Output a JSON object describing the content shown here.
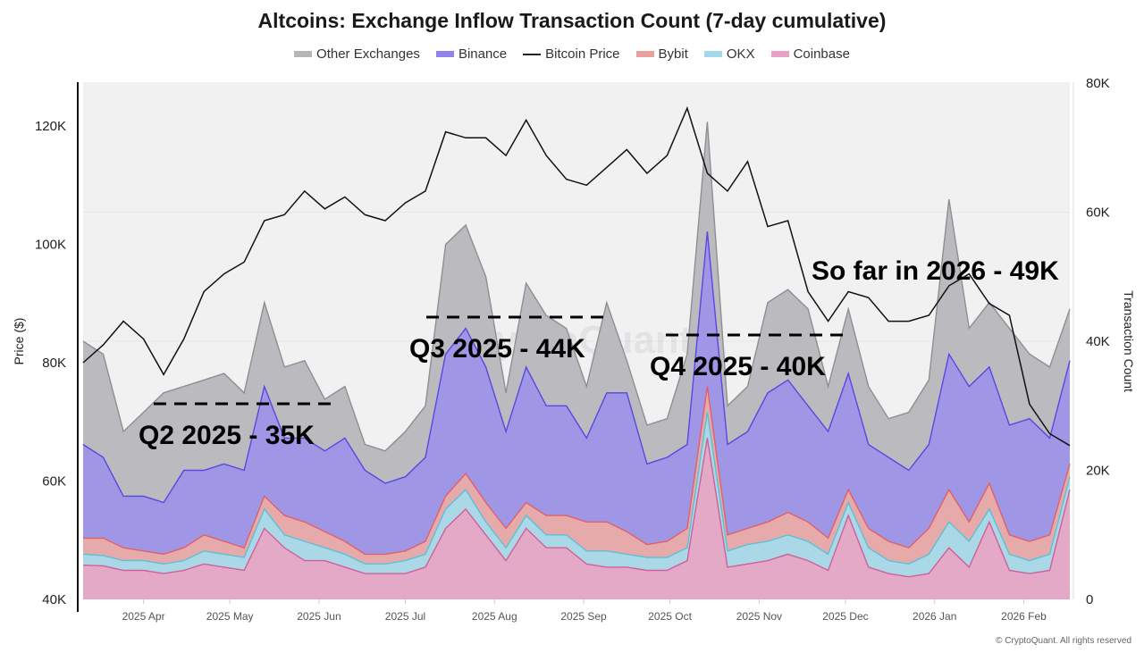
{
  "chart_data": {
    "type": "area",
    "stacked": true,
    "title": "Altcoins: Exchange Inflow Transaction Count (7-day cumulative)",
    "ylabel_left": "Price ($)",
    "ylabel_right": "Transaction Count",
    "ylim_left": [
      40000,
      127000
    ],
    "ylim_right": [
      0,
      80000
    ],
    "yticks_left": [
      "40K",
      "60K",
      "80K",
      "100K",
      "120K"
    ],
    "yticks_right": [
      "0",
      "20K",
      "40K",
      "60K",
      "80K"
    ],
    "xlim": [
      "2025-03-11",
      "2026-02-17"
    ],
    "xticks": [
      {
        "date": "2025-04-01",
        "label": "2025 Apr"
      },
      {
        "date": "2025-05-01",
        "label": "2025 May"
      },
      {
        "date": "2025-06-01",
        "label": "2025 Jun"
      },
      {
        "date": "2025-07-01",
        "label": "2025 Jul"
      },
      {
        "date": "2025-08-01",
        "label": "2025 Aug"
      },
      {
        "date": "2025-09-01",
        "label": "2025 Sep"
      },
      {
        "date": "2025-10-01",
        "label": "2025 Oct"
      },
      {
        "date": "2025-11-01",
        "label": "2025 Nov"
      },
      {
        "date": "2025-12-01",
        "label": "2025 Dec"
      },
      {
        "date": "2026-01-01",
        "label": "2026 Jan"
      },
      {
        "date": "2026-02-01",
        "label": "2026 Feb"
      }
    ],
    "legend_position": "top",
    "grid": true,
    "x": [
      "2025-03-11",
      "2025-03-18",
      "2025-03-25",
      "2025-04-01",
      "2025-04-08",
      "2025-04-15",
      "2025-04-22",
      "2025-04-29",
      "2025-05-06",
      "2025-05-13",
      "2025-05-20",
      "2025-05-27",
      "2025-06-03",
      "2025-06-10",
      "2025-06-17",
      "2025-06-24",
      "2025-07-01",
      "2025-07-08",
      "2025-07-15",
      "2025-07-22",
      "2025-07-29",
      "2025-08-05",
      "2025-08-12",
      "2025-08-19",
      "2025-08-26",
      "2025-09-02",
      "2025-09-09",
      "2025-09-16",
      "2025-09-23",
      "2025-09-30",
      "2025-10-07",
      "2025-10-14",
      "2025-10-21",
      "2025-10-28",
      "2025-11-04",
      "2025-11-11",
      "2025-11-18",
      "2025-11-25",
      "2025-12-02",
      "2025-12-09",
      "2025-12-16",
      "2025-12-23",
      "2025-12-30",
      "2026-01-06",
      "2026-01-13",
      "2026-01-20",
      "2026-01-27",
      "2026-02-03",
      "2026-02-10",
      "2026-02-17"
    ],
    "series": [
      {
        "name": "Coinbase",
        "axis": "right",
        "color": "#e3a9c7",
        "line": "#d0609a",
        "values": [
          5300,
          5200,
          4500,
          4500,
          4000,
          4500,
          5500,
          5000,
          4500,
          11000,
          8000,
          6000,
          6000,
          5000,
          4000,
          4000,
          4000,
          5000,
          11000,
          14000,
          10000,
          6000,
          11000,
          8000,
          8000,
          5500,
          5000,
          5000,
          4500,
          4500,
          6000,
          25000,
          5000,
          5500,
          6000,
          7000,
          6000,
          4500,
          13000,
          5000,
          4000,
          3500,
          4000,
          8000,
          5000,
          12000,
          4500,
          4000,
          4500,
          17000
        ]
      },
      {
        "name": "OKX",
        "axis": "right",
        "color": "#abd8e6",
        "line": "#5cc0d6",
        "values": [
          1700,
          1600,
          1500,
          1500,
          1500,
          1500,
          2000,
          2000,
          2000,
          3000,
          2000,
          3000,
          2000,
          2000,
          1500,
          1500,
          2000,
          2000,
          3000,
          3000,
          2000,
          2000,
          2000,
          2000,
          2000,
          2000,
          2500,
          2000,
          2000,
          2000,
          2000,
          4000,
          2500,
          3000,
          3000,
          3000,
          3000,
          2500,
          2000,
          3000,
          2000,
          2000,
          3000,
          4000,
          4000,
          2000,
          2500,
          2000,
          2500,
          2000
        ]
      },
      {
        "name": "Bybit",
        "axis": "right",
        "color": "#e6aaaa",
        "line": "#e0606a",
        "values": [
          2500,
          2700,
          2000,
          1500,
          1500,
          2000,
          2500,
          2000,
          1500,
          2000,
          3000,
          3000,
          2500,
          2000,
          1500,
          1500,
          1500,
          2000,
          2000,
          2500,
          3000,
          3000,
          2000,
          3000,
          3000,
          4500,
          4500,
          3500,
          2000,
          2500,
          3000,
          4000,
          2500,
          2500,
          3000,
          3500,
          3000,
          2500,
          2000,
          3000,
          3000,
          2500,
          4000,
          5000,
          3000,
          4000,
          3000,
          3000,
          3000,
          2000
        ]
      },
      {
        "name": "Binance",
        "axis": "right",
        "color": "#a096e6",
        "line": "#5a46e0",
        "values": [
          14500,
          12500,
          8000,
          8500,
          8000,
          12000,
          10000,
          12000,
          12000,
          17000,
          12000,
          13000,
          12500,
          16000,
          13000,
          11000,
          11500,
          13000,
          22000,
          22500,
          21000,
          15000,
          21000,
          17000,
          17000,
          13000,
          20000,
          21500,
          12500,
          13000,
          13000,
          24000,
          14000,
          15000,
          20000,
          20500,
          18000,
          16500,
          18000,
          13000,
          13000,
          12000,
          13000,
          21000,
          21000,
          18000,
          17000,
          19000,
          15000,
          16000
        ]
      },
      {
        "name": "Other Exchanges",
        "axis": "right",
        "color": "#bbbbbf",
        "line": "#8e8e93",
        "values": [
          16000,
          16000,
          10000,
          13000,
          17000,
          13000,
          14000,
          14000,
          12000,
          13000,
          11000,
          12000,
          8000,
          8000,
          4000,
          5000,
          7000,
          8000,
          17000,
          16000,
          14000,
          6000,
          13000,
          14000,
          12000,
          8000,
          14000,
          5000,
          6000,
          6000,
          14000,
          17000,
          6000,
          7000,
          14000,
          14000,
          15000,
          7000,
          10000,
          9000,
          6000,
          9000,
          10000,
          24000,
          9000,
          10000,
          15000,
          10000,
          11000,
          8000
        ]
      },
      {
        "name": "Bitcoin Price",
        "axis": "left",
        "color": "#111111",
        "type": "line",
        "values": [
          80000,
          83000,
          87000,
          84000,
          78000,
          84000,
          92000,
          95000,
          97000,
          104000,
          105000,
          109000,
          106000,
          108000,
          105000,
          104000,
          107000,
          109000,
          119000,
          118000,
          118000,
          115000,
          121000,
          115000,
          111000,
          110000,
          113000,
          116000,
          112000,
          115000,
          123000,
          112000,
          109000,
          114000,
          103000,
          104000,
          92000,
          87000,
          92000,
          91000,
          87000,
          87000,
          88000,
          93000,
          95000,
          90000,
          88000,
          73000,
          68000,
          66000
        ]
      }
    ],
    "annotations": [
      {
        "text": "Q2 2025 - 35K"
      },
      {
        "text": "Q3 2025 - 44K"
      },
      {
        "text": "Q4 2025 - 40K"
      },
      {
        "text": "So far in 2026 - 49K"
      }
    ]
  },
  "legend": [
    {
      "label": "Other Exchanges",
      "color": "#b5b5ba",
      "kind": "area"
    },
    {
      "label": "Binance",
      "color": "#8f82ea",
      "kind": "area"
    },
    {
      "label": "Bitcoin Price",
      "color": "#222222",
      "kind": "line"
    },
    {
      "label": "Bybit",
      "color": "#eba0a0",
      "kind": "area"
    },
    {
      "label": "OKX",
      "color": "#a2d9ea",
      "kind": "area"
    },
    {
      "label": "Coinbase",
      "color": "#e9a0c4",
      "kind": "area"
    }
  ],
  "watermark": "CryptoQuant",
  "footer": "© CryptoQuant. All rights reserved"
}
